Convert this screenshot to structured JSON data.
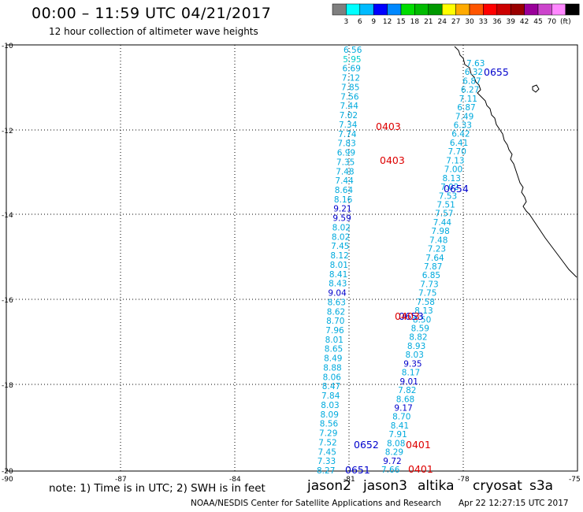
{
  "header": {
    "title": "00:00 – 11:59 UTC 04/21/2017",
    "subtitle": "12 hour collection of altimeter wave heights"
  },
  "legend": {
    "colors": [
      "#7f7f7f",
      "#00ffff",
      "#00bbff",
      "#0000ff",
      "#0088ff",
      "#00dd00",
      "#00bb00",
      "#009900",
      "#ffff00",
      "#ffaa00",
      "#ff5500",
      "#ff0000",
      "#cc0000",
      "#990000",
      "#990099",
      "#cc44cc",
      "#ff88ff",
      "#000000"
    ],
    "labels": [
      "3",
      "6",
      "9",
      "12",
      "15",
      "18",
      "21",
      "24",
      "27",
      "30",
      "33",
      "36",
      "39",
      "42",
      "45",
      "70",
      "(ft)"
    ]
  },
  "axes": {
    "y_labels": [
      "-10",
      "-12",
      "-14",
      "-16",
      "-18",
      "-20"
    ],
    "x_labels": [
      "-90",
      "-87",
      "-84",
      "-81",
      "-78",
      "-75"
    ]
  },
  "passes": [
    {
      "satellite": "jason2",
      "time": "0655",
      "color": "#0000cc"
    },
    {
      "satellite": "cryosat",
      "time": "0403",
      "color": "#dd0000"
    },
    {
      "satellite": "cryosat",
      "time": "0403",
      "color": "#dd0000"
    },
    {
      "satellite": "jason2",
      "time": "0654",
      "color": "#0000cc"
    },
    {
      "satellite": "jason2",
      "time": "0653",
      "color": "#0000cc"
    },
    {
      "satellite": "cryosat",
      "time": "0403",
      "color": "#dd0000"
    },
    {
      "satellite": "jason2",
      "time": "0652",
      "color": "#0000cc"
    },
    {
      "satellite": "cryosat",
      "time": "0401",
      "color": "#dd0000"
    },
    {
      "satellite": "jason2",
      "time": "0651",
      "color": "#0000cc"
    },
    {
      "satellite": "cryosat",
      "time": "0401",
      "color": "#dd0000"
    }
  ],
  "track_a_values": [
    "6.56",
    "5.95",
    "6.69",
    "7.12",
    "7.85",
    "7.56",
    "7.44",
    "7.02",
    "7.34",
    "7.74",
    "7.83",
    "6.99",
    "7.35",
    "7.48",
    "7.44",
    "8.64",
    "8.16",
    "9.21",
    "9.59",
    "8.02",
    "8.02",
    "7.45",
    "8.12",
    "8.01",
    "8.41",
    "8.43",
    "9.04",
    "8.63",
    "8.62",
    "8.70",
    "7.96",
    "8.01",
    "8.65",
    "8.49",
    "8.88",
    "8.06",
    "8.47",
    "7.84",
    "8.03",
    "8.09",
    "8.56",
    "7.29",
    "7.52",
    "7.45",
    "7.33",
    "8.27"
  ],
  "track_b_values": [
    "7.63",
    "6.32",
    "6.87",
    "6.27",
    "7.11",
    "6.87",
    "7.49",
    "6.33",
    "6.42",
    "6.41",
    "7.70",
    "7.13",
    "7.00",
    "8.13",
    "7.02",
    "7.53",
    "7.51",
    "7.57",
    "7.44",
    "7.98",
    "7.48",
    "7.23",
    "7.64",
    "7.87",
    "6.85",
    "7.73",
    "7.75",
    "7.58",
    "8.13",
    "8.50",
    "8.59",
    "8.82",
    "8.93",
    "8.03",
    "9.35",
    "8.17",
    "9.01",
    "7.82",
    "8.68",
    "9.17",
    "8.70",
    "8.41",
    "7.91",
    "8.08",
    "8.29",
    "9.72",
    "7.66"
  ],
  "note": "note: 1) Time is in UTC; 2) SWH is in feet",
  "satellites": [
    {
      "name": "jason2",
      "color": "#0000cc"
    },
    {
      "name": "jason3",
      "color": "#009900"
    },
    {
      "name": "altika",
      "color": "#ff8800"
    },
    {
      "name": "cryosat",
      "color": "#dd0000"
    },
    {
      "name": "s3a",
      "color": "#880000"
    }
  ],
  "footer": {
    "credit": "NOAA/NESDIS Center for Satellite Applications and Research",
    "timestamp": "Apr 22 12:27:15 UTC 2017"
  }
}
